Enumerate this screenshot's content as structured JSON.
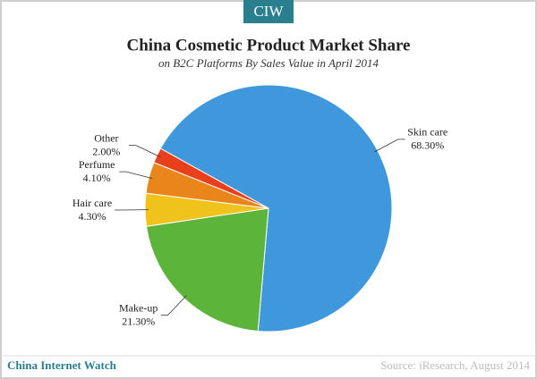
{
  "brand": "CIW",
  "chart_data": {
    "type": "pie",
    "title": "China Cosmetic Product Market Share",
    "subtitle": "on B2C Platforms By Sales Value in April 2014",
    "categories": [
      "Skin care",
      "Make-up",
      "Hair care",
      "Perfume",
      "Other"
    ],
    "values": [
      68.3,
      21.3,
      4.3,
      4.1,
      2.0
    ],
    "value_labels": [
      "68.30%",
      "21.30%",
      "4.30%",
      "4.10%",
      "2.00%"
    ],
    "colors": [
      "#3f97dc",
      "#5cb53a",
      "#f0c31c",
      "#e8861c",
      "#e8401c"
    ]
  },
  "footer": {
    "site": "China Internet Watch",
    "source": "Source: iResearch, August 2014"
  }
}
